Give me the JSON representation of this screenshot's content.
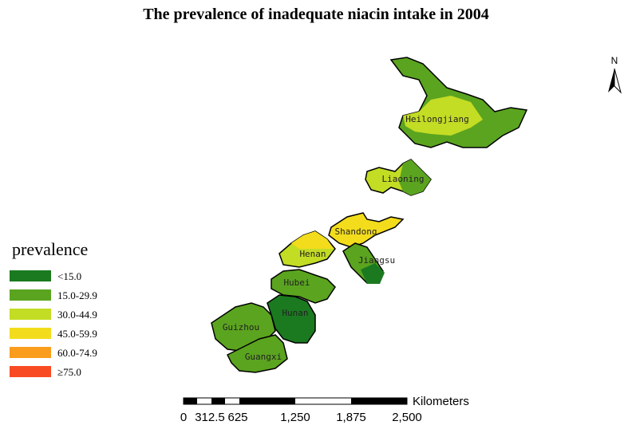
{
  "map": {
    "title": "The prevalence of inadequate niacin intake in 2004",
    "north": "N",
    "legend": {
      "title": "prevalence",
      "items": [
        {
          "label": "<15.0",
          "color": "#1b7a20"
        },
        {
          "label": "15.0-29.9",
          "color": "#5ba41f"
        },
        {
          "label": "30.0-44.9",
          "color": "#c3dc24"
        },
        {
          "label": "45.0-59.9",
          "color": "#f3dc1c"
        },
        {
          "label": "60.0-74.9",
          "color": "#fb9d1c"
        },
        {
          "label": "≥75.0",
          "color": "#f94b23"
        }
      ]
    },
    "provinces": [
      {
        "name": "Heilongjiang",
        "color": "#5ba41f"
      },
      {
        "name": "Liaoning",
        "color": "#c3dc24"
      },
      {
        "name": "Shandong",
        "color": "#f3dc1c"
      },
      {
        "name": "Henan",
        "color": "#c3dc24"
      },
      {
        "name": "Jiangsu",
        "color": "#5ba41f"
      },
      {
        "name": "Hubei",
        "color": "#5ba41f"
      },
      {
        "name": "Hunan",
        "color": "#1b7a20"
      },
      {
        "name": "Guizhou",
        "color": "#5ba41f"
      },
      {
        "name": "Guangxi",
        "color": "#5ba41f"
      }
    ],
    "scale": {
      "unit": "Kilometers",
      "labels": [
        "0",
        "312.5",
        "625",
        "1,250",
        "1,875",
        "2,500"
      ]
    }
  }
}
